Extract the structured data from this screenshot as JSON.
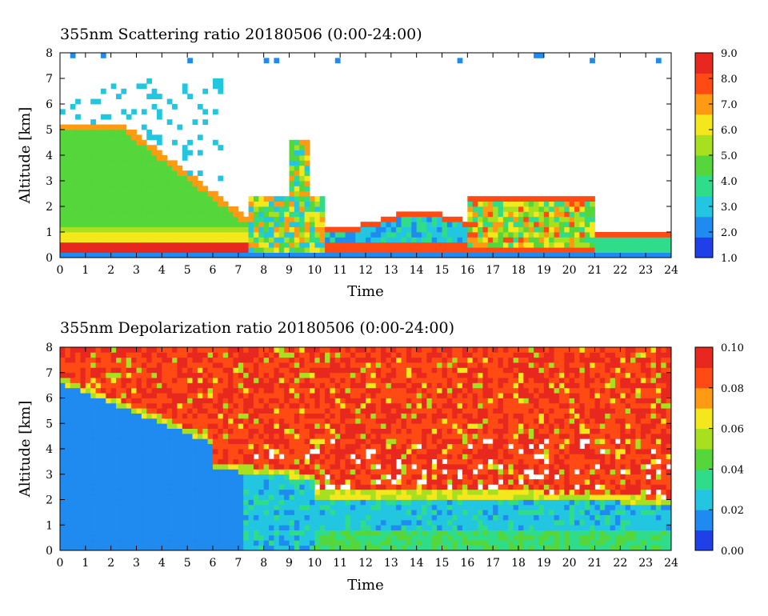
{
  "chart_data": [
    {
      "type": "heatmap",
      "title": "355nm Scattering ratio  20180506 (0:00-24:00)",
      "xlabel": "Time",
      "ylabel": "Altitude [km]",
      "xlim": [
        0,
        24
      ],
      "ylim": [
        0,
        8
      ],
      "xticks": [
        "0",
        "1",
        "2",
        "3",
        "4",
        "5",
        "6",
        "7",
        "8",
        "9",
        "10",
        "11",
        "12",
        "13",
        "14",
        "15",
        "16",
        "17",
        "18",
        "19",
        "20",
        "21",
        "22",
        "23",
        "24"
      ],
      "yticks": [
        "0",
        "1",
        "2",
        "3",
        "4",
        "5",
        "6",
        "7",
        "8"
      ],
      "colorbar": {
        "range": [
          1.0,
          9.0
        ],
        "ticks": [
          "1.0",
          "2.0",
          "3.0",
          "4.0",
          "5.0",
          "6.0",
          "7.0",
          "8.0",
          "9.0"
        ],
        "colors": [
          "#1f3fe8",
          "#1f8bf0",
          "#22c6e0",
          "#2fdc8a",
          "#55d63a",
          "#a8e020",
          "#f4e81c",
          "#ff9a12",
          "#ff4a14",
          "#e8281e"
        ]
      }
    },
    {
      "type": "heatmap",
      "title": "355nm Depolarization ratio  20180506 (0:00-24:00)",
      "xlabel": "Time",
      "ylabel": "Altitude [km]",
      "xlim": [
        0,
        24
      ],
      "ylim": [
        0,
        8
      ],
      "xticks": [
        "0",
        "1",
        "2",
        "3",
        "4",
        "5",
        "6",
        "7",
        "8",
        "9",
        "10",
        "11",
        "12",
        "13",
        "14",
        "15",
        "16",
        "17",
        "18",
        "19",
        "20",
        "21",
        "22",
        "23",
        "24"
      ],
      "yticks": [
        "0",
        "1",
        "2",
        "3",
        "4",
        "5",
        "6",
        "7",
        "8"
      ],
      "colorbar": {
        "range": [
          0.0,
          0.1
        ],
        "ticks": [
          "0.00",
          "0.02",
          "0.04",
          "0.06",
          "0.08",
          "0.10"
        ],
        "colors": [
          "#1f3fe8",
          "#1f8bf0",
          "#22c6e0",
          "#2fdc8a",
          "#55d63a",
          "#a8e020",
          "#f4e81c",
          "#ff9a12",
          "#ff4a14",
          "#e8281e"
        ]
      }
    }
  ]
}
